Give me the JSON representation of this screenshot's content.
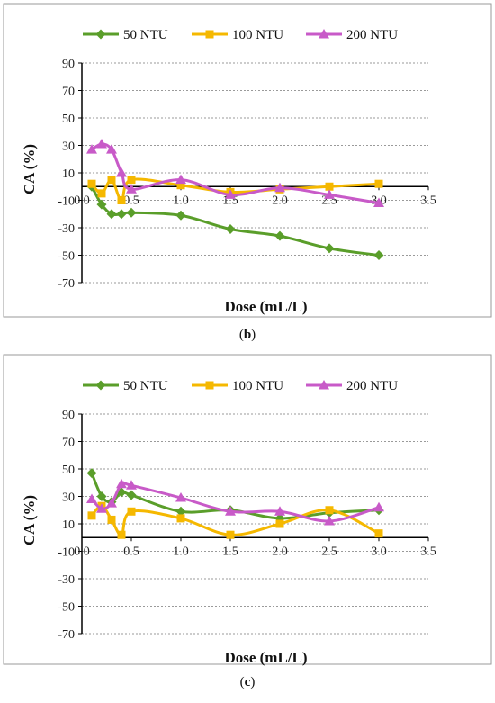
{
  "chart_data": [
    {
      "type": "line",
      "panel_label": "(b)",
      "caption_letter": "b",
      "xlabel": "Dose (mL/L)",
      "ylabel": "CA (%)",
      "xlim": [
        0,
        3.5
      ],
      "ylim": [
        -70,
        90
      ],
      "xticks": [
        "0.0",
        "0.5",
        "1.0",
        "1.5",
        "2.0",
        "2.5",
        "3.0",
        "3.5"
      ],
      "yticks": [
        "-70",
        "-50",
        "-30",
        "-10",
        "10",
        "30",
        "50",
        "70",
        "90"
      ],
      "grid": true,
      "legend_position": "top",
      "series": [
        {
          "name": "50 NTU",
          "color": "#5a9e2a",
          "marker": "diamond",
          "x": [
            0.1,
            0.2,
            0.3,
            0.4,
            0.5,
            1.0,
            1.5,
            2.0,
            2.5,
            3.0
          ],
          "y": [
            0,
            -13,
            -20,
            -20,
            -19,
            -21,
            -31,
            -36,
            -45,
            -50
          ]
        },
        {
          "name": "100 NTU",
          "color": "#f5b800",
          "marker": "square",
          "x": [
            0.1,
            0.2,
            0.3,
            0.4,
            0.5,
            1.0,
            1.5,
            2.0,
            2.5,
            3.0
          ],
          "y": [
            2,
            -5,
            5,
            -10,
            5,
            1,
            -4,
            -2,
            0,
            2
          ]
        },
        {
          "name": "200 NTU",
          "color": "#c85ac8",
          "marker": "triangle",
          "x": [
            0.1,
            0.2,
            0.3,
            0.4,
            0.5,
            1.0,
            1.5,
            2.0,
            2.5,
            3.0
          ],
          "y": [
            27,
            31,
            27,
            10,
            -2,
            5,
            -6,
            -1,
            -6,
            -12
          ]
        }
      ]
    },
    {
      "type": "line",
      "panel_label": "(c)",
      "caption_letter": "c",
      "xlabel": "Dose (mL/L)",
      "ylabel": "CA (%)",
      "xlim": [
        0,
        3.5
      ],
      "ylim": [
        -70,
        90
      ],
      "xticks": [
        "0.0",
        "0.5",
        "1.0",
        "1.5",
        "2.0",
        "2.5",
        "3.0",
        "3.5"
      ],
      "yticks": [
        "-70",
        "-50",
        "-30",
        "-10",
        "10",
        "30",
        "50",
        "70",
        "90"
      ],
      "grid": true,
      "legend_position": "top",
      "series": [
        {
          "name": "50 NTU",
          "color": "#5a9e2a",
          "marker": "diamond",
          "x": [
            0.1,
            0.2,
            0.3,
            0.4,
            0.5,
            1.0,
            1.5,
            2.0,
            2.5,
            3.0
          ],
          "y": [
            47,
            30,
            26,
            33,
            31,
            19,
            20,
            14,
            18,
            20
          ]
        },
        {
          "name": "100 NTU",
          "color": "#f5b800",
          "marker": "square",
          "x": [
            0.1,
            0.2,
            0.3,
            0.4,
            0.5,
            1.0,
            1.5,
            2.0,
            2.5,
            3.0
          ],
          "y": [
            16,
            23,
            13,
            2,
            19,
            14,
            2,
            10,
            20,
            3
          ]
        },
        {
          "name": "200 NTU",
          "color": "#c85ac8",
          "marker": "triangle",
          "x": [
            0.1,
            0.2,
            0.3,
            0.4,
            0.5,
            1.0,
            1.5,
            2.0,
            2.5,
            3.0
          ],
          "y": [
            28,
            21,
            25,
            39,
            38,
            29,
            19,
            19,
            12,
            22
          ]
        }
      ]
    }
  ]
}
